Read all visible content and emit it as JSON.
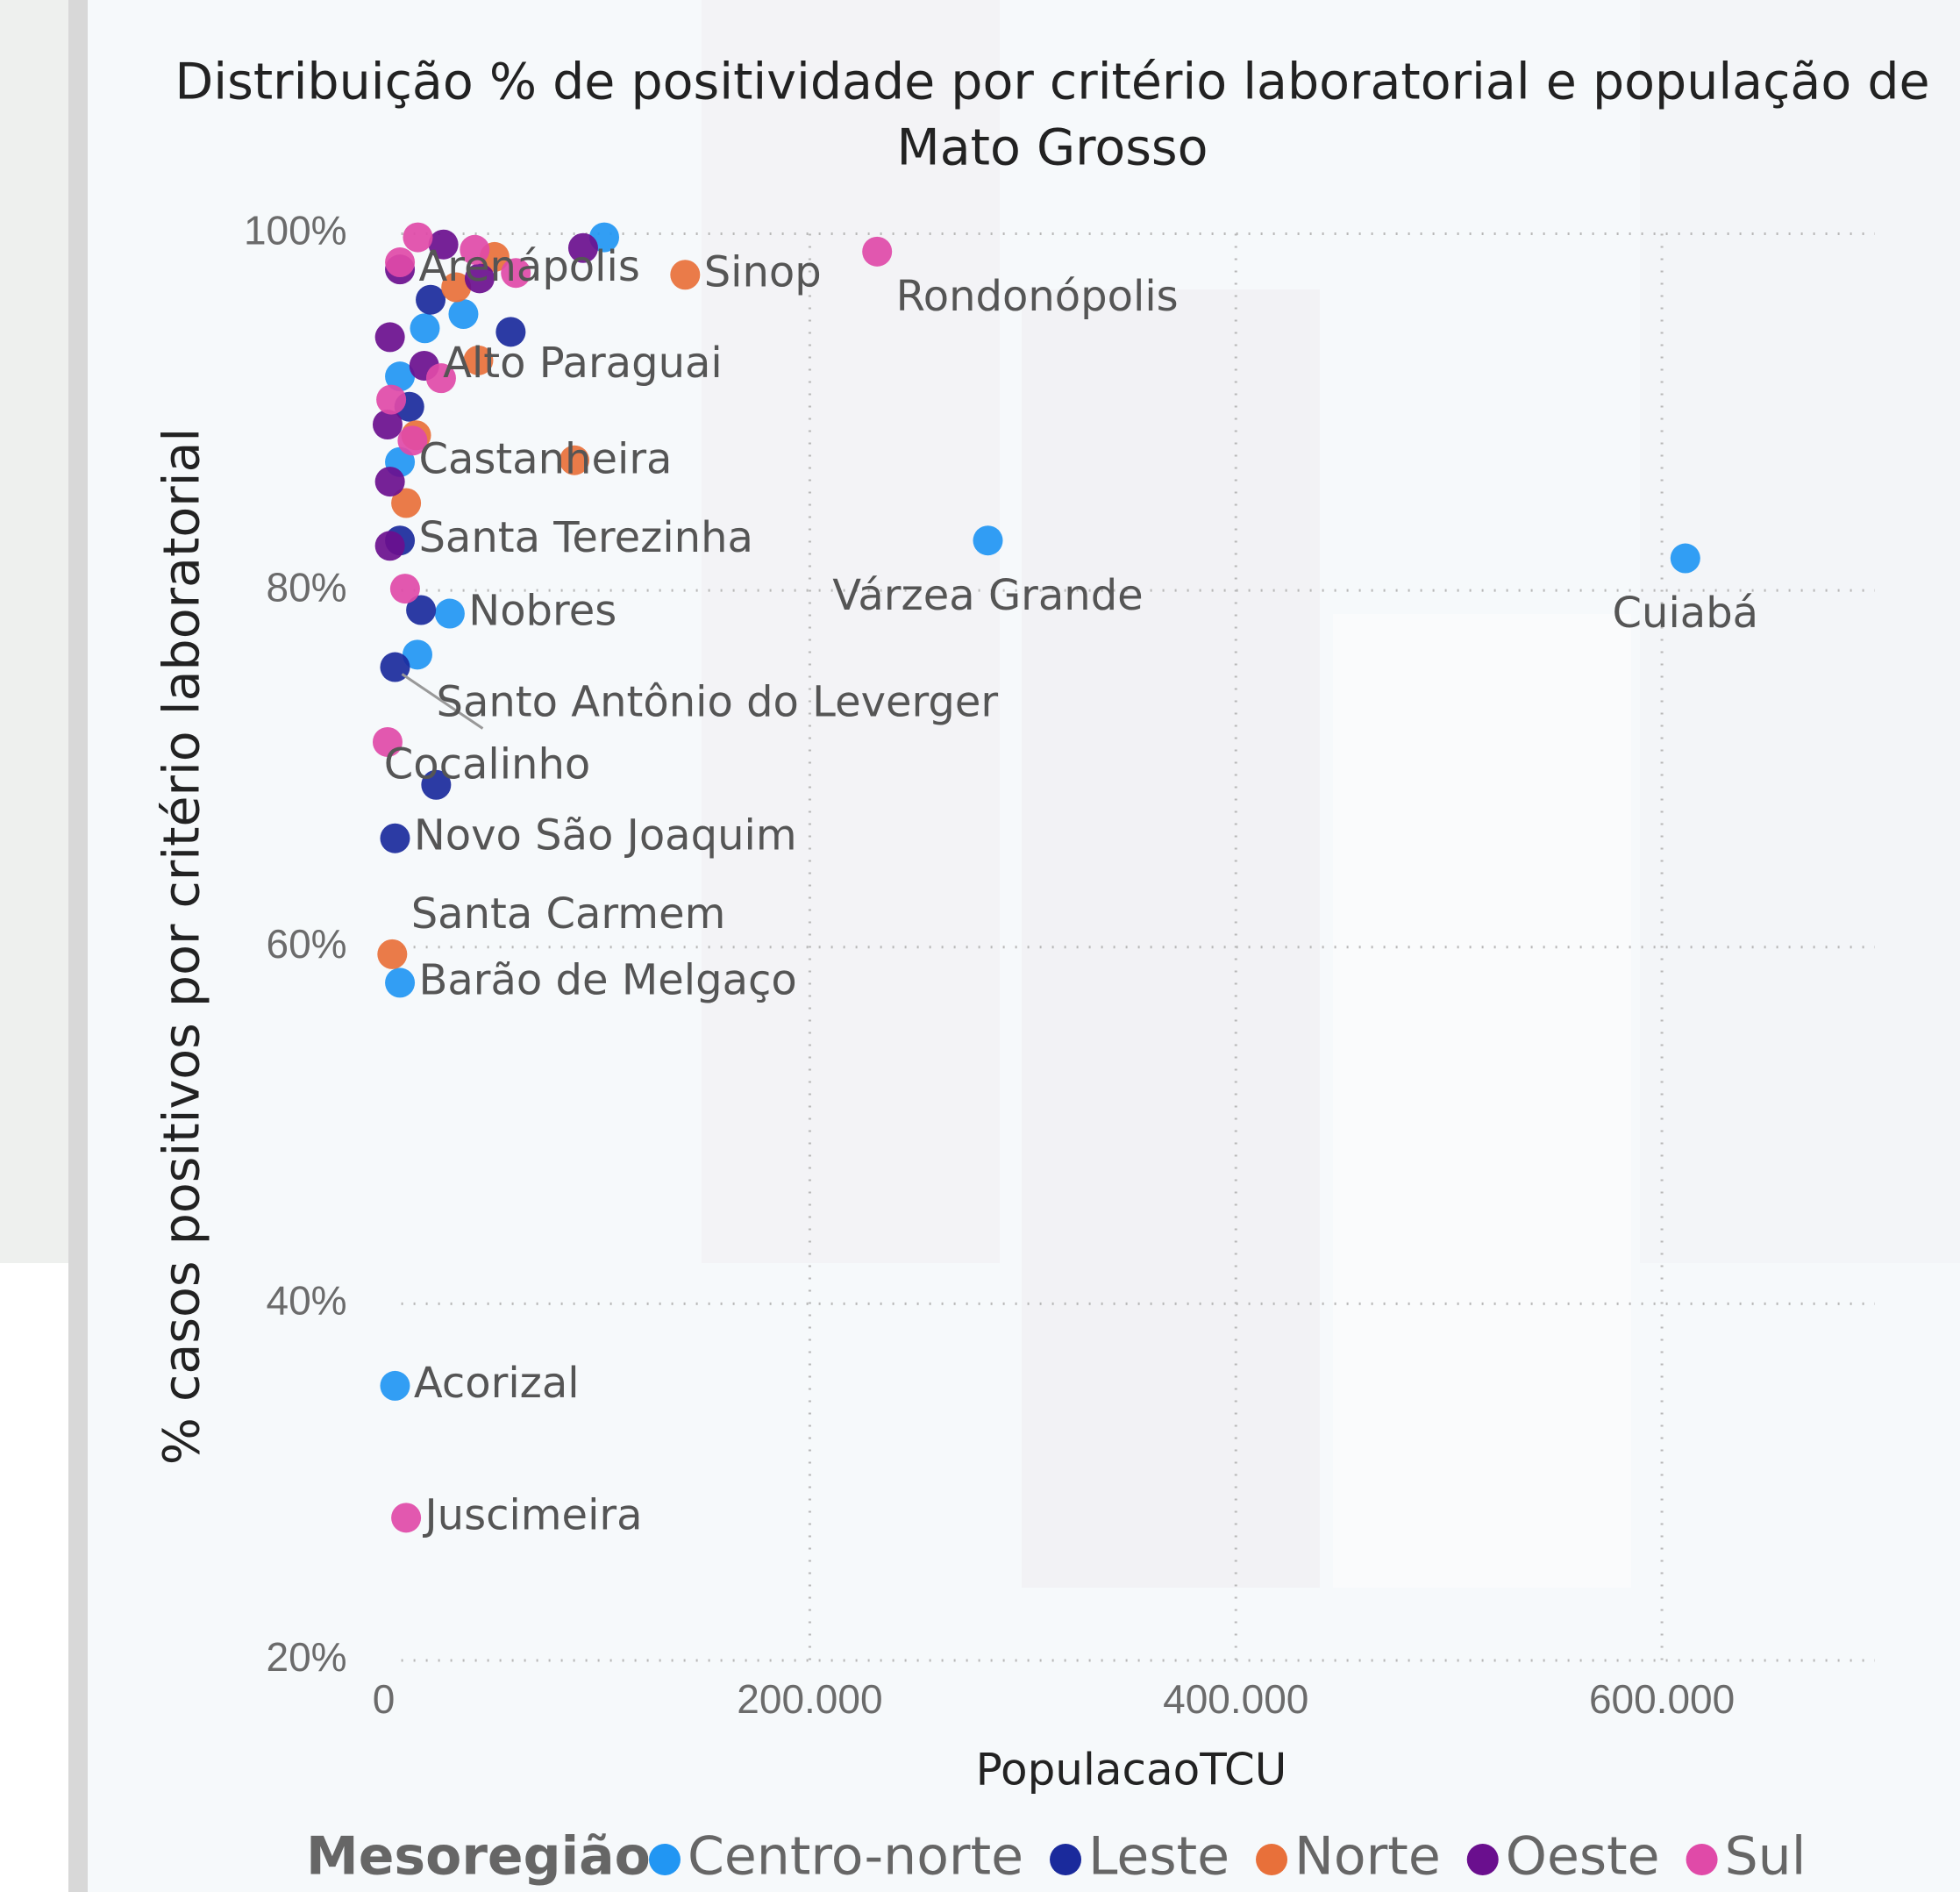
{
  "chart_data": {
    "type": "scatter",
    "title": [
      "Distribuição % de positividade por critério laboratorial e população de",
      "Mato Grosso"
    ],
    "x_label": "PopulacaoTCU",
    "y_label": "% casos positivos por critério laboratorial",
    "legend_title": "Mesoregião",
    "xlim": [
      0,
      700000
    ],
    "ylim": [
      20,
      100
    ],
    "xticks": [
      0,
      {
        "value": 200000,
        "label": "200.000"
      },
      {
        "value": 400000,
        "label": "400.000"
      },
      {
        "value": 600000,
        "label": "600.000"
      }
    ],
    "yticks": [
      {
        "value": 20,
        "label": "20%"
      },
      {
        "value": 40,
        "label": "40%"
      },
      {
        "value": 60,
        "label": "60%"
      },
      {
        "value": 80,
        "label": "80%"
      },
      {
        "value": 100,
        "label": "100%"
      }
    ],
    "grid": true,
    "series": [
      {
        "name": "Centro-norte",
        "color": "#2196f3",
        "x": [
          611000,
          283600,
          7600,
          31000,
          7600,
          5300,
          103500,
          37400,
          19300,
          15800,
          7600
        ],
        "values": [
          81.8,
          82.8,
          87.2,
          78.7,
          58.0,
          35.4,
          99.8,
          95.5,
          94.7,
          76.4,
          92.0
        ],
        "labels": [
          "Cuiabá",
          "Várzea Grande",
          "Castanheira",
          "Nobres",
          "Barão de Melgaço",
          "Acorizal",
          null,
          null,
          null,
          null,
          null
        ]
      },
      {
        "name": "Leste",
        "color": "#1a2a9c",
        "x": [
          7600,
          5300,
          5300,
          59600,
          22000,
          12000,
          17500,
          24600
        ],
        "values": [
          82.8,
          75.7,
          66.1,
          94.5,
          96.3,
          90.3,
          78.9,
          69.1
        ],
        "labels": [
          "Santa Terezinha",
          "Santo Antônio do Leverger",
          "Novo São Joaquim",
          null,
          null,
          null,
          null,
          null
        ]
      },
      {
        "name": "Norte",
        "color": "#e8703a",
        "x": [
          141500,
          4000,
          89500,
          44400,
          52000,
          10500,
          15200,
          34000
        ],
        "values": [
          97.7,
          59.6,
          87.3,
          92.9,
          98.7,
          84.9,
          88.7,
          97.0
        ],
        "labels": [
          "Sinop",
          "Santa Carmem",
          null,
          null,
          null,
          null,
          null,
          null
        ]
      },
      {
        "name": "Oeste",
        "color": "#6a0f8e",
        "x": [
          7600,
          19000,
          93600,
          45000,
          28000,
          2900,
          2900,
          2900,
          1800
        ],
        "values": [
          98.0,
          92.6,
          99.2,
          97.5,
          99.4,
          86.1,
          82.5,
          94.2,
          89.3
        ],
        "labels": [
          "Arenápolis",
          "Alto Paraguai",
          null,
          null,
          null,
          null,
          null,
          null,
          null
        ]
      },
      {
        "name": "Sul",
        "color": "#e04aa8",
        "x": [
          231600,
          1800,
          10500,
          42700,
          62000,
          26900,
          13500,
          3500,
          10000,
          7600,
          16000
        ],
        "values": [
          99.0,
          71.5,
          28.0,
          99.1,
          97.8,
          91.9,
          88.4,
          90.7,
          80.1,
          98.4,
          99.8
        ],
        "labels": [
          "Rondonópolis",
          "Cocalinho",
          "Juscimeira",
          null,
          null,
          null,
          null,
          null,
          null,
          null,
          null
        ]
      }
    ]
  }
}
